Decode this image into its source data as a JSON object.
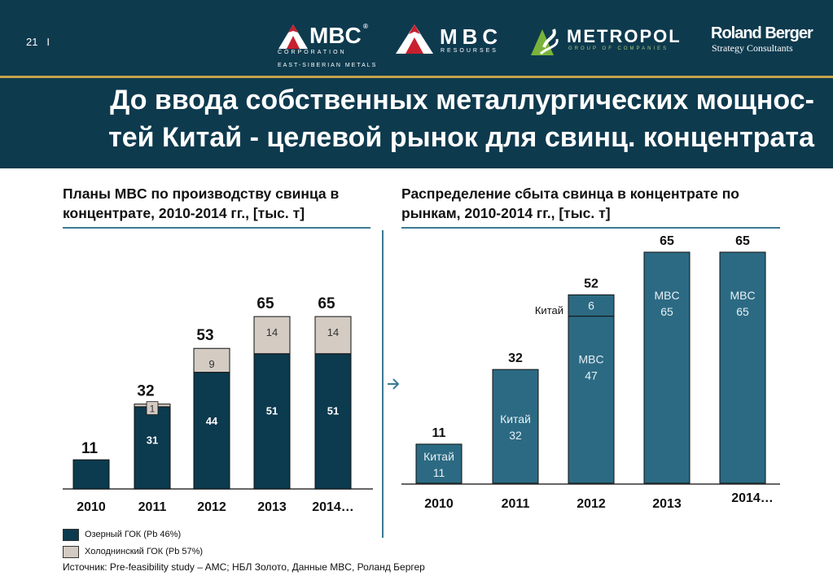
{
  "header": {
    "page_number": "21",
    "page_sep": "I",
    "logos": {
      "mbc_corp_name": "MBC",
      "mbc_corp_reg": "®",
      "mbc_corp_sub": "CORPORATION",
      "mbc_corp_sub2": "EAST-SIBERIAN METALS",
      "mbc_res_name": "MBC",
      "mbc_res_sub": "RESOURSES",
      "metropol_name": "METROPOL",
      "metropol_sub": "GROUP OF COMPANIES",
      "rb_name": "Roland Berger",
      "rb_sub": "Strategy Consultants"
    },
    "title_line1": "До ввода собственных металлургических мощнос-",
    "title_line2": "тей Китай - целевой рынок для свинц. концентрата"
  },
  "colors": {
    "header_bg": "#0e3a4e",
    "dark_bar": "#0c3a4e",
    "light_bar": "#d4cbc3",
    "right_bar": "#2c6a83",
    "accent_line": "#3c7a93",
    "gold": "#c6a24a"
  },
  "left_chart": {
    "subtitle_line1": "Планы MBC по производству свинца в",
    "subtitle_line2": "концентрате, 2010-2014 гг., [тыс. т]"
  },
  "right_chart": {
    "subtitle_line1": "Распределение сбыта свинца в концентрате по",
    "subtitle_line2": "рынкам, 2010-2014 гг., [тыс. т]"
  },
  "legend": [
    {
      "label": "Озерный ГОК (Pb 46%)",
      "color": "#0c3a4e"
    },
    {
      "label": "Холоднинский ГОК (Pb 57%)",
      "color": "#d4cbc3"
    }
  ],
  "source": "Источник: Pre-feasibility study – AMC; НБЛ Золото, Данные MBC, Роланд Бергер",
  "chart_data": [
    {
      "type": "bar",
      "stacked": true,
      "categories": [
        "2010",
        "2011",
        "2012",
        "2013",
        "2014…"
      ],
      "series": [
        {
          "name": "Озерный ГОК (Pb 46%)",
          "values": [
            11,
            31,
            44,
            51,
            51
          ],
          "labels": [
            "",
            "31",
            "44",
            "51",
            "51"
          ]
        },
        {
          "name": "Холоднинский ГОК (Pb 57%)",
          "values": [
            0,
            1,
            9,
            14,
            14
          ],
          "labels": [
            "",
            "1",
            "9",
            "14",
            "14"
          ]
        }
      ],
      "totals": [
        "11",
        "32",
        "53",
        "65",
        "65"
      ],
      "ylim": [
        0,
        65
      ]
    },
    {
      "type": "bar",
      "stacked": true,
      "categories": [
        "2010",
        "2011",
        "2012",
        "2013",
        "2014…"
      ],
      "series": [
        {
          "values": [
            11,
            32,
            0,
            0,
            0
          ],
          "labels": [
            "Китай\n11",
            "Китай\n32",
            "",
            "",
            ""
          ]
        },
        {
          "values": [
            0,
            0,
            47,
            65,
            65
          ],
          "labels": [
            "",
            "",
            "MBC\n47",
            "MBC\n65",
            "MBC\n65"
          ]
        },
        {
          "values": [
            0,
            0,
            6,
            0,
            0
          ],
          "labels": [
            "",
            "",
            "6",
            "",
            ""
          ]
        }
      ],
      "totals": [
        "11",
        "32",
        "52",
        "65",
        "65"
      ],
      "annotations": [
        "Китай"
      ],
      "ylim": [
        0,
        65
      ]
    }
  ]
}
